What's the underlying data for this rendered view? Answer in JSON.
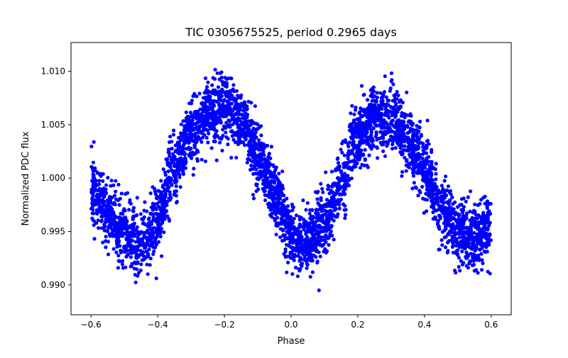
{
  "chart_data": {
    "type": "scatter",
    "title": "TIC 0305675525, period 0.2965 days",
    "xlabel": "Phase",
    "ylabel": "Normalized PDC flux",
    "xlim": [
      -0.66,
      0.66
    ],
    "ylim": [
      0.9872,
      1.0127
    ],
    "xticks": [
      -0.6,
      -0.4,
      -0.2,
      0.0,
      0.2,
      0.4,
      0.6
    ],
    "xtick_labels": [
      "−0.6",
      "−0.4",
      "−0.2",
      "0.0",
      "0.2",
      "0.4",
      "0.6"
    ],
    "yticks": [
      0.99,
      0.995,
      1.0,
      1.005,
      1.01
    ],
    "ytick_labels": [
      "0.990",
      "0.995",
      "1.000",
      "1.005",
      "1.010"
    ],
    "grid": false,
    "marker_color": "#0000ff",
    "series": [
      {
        "name": "PDC flux",
        "model": {
          "description": "phase-folded eclipsing-binary light curve, ~4000 points",
          "phase_range": [
            -0.6,
            0.6
          ],
          "n_points": 4000,
          "noise_sigma": 0.0015,
          "curve_points": [
            [
              -0.6,
              0.999
            ],
            [
              -0.55,
              0.997
            ],
            [
              -0.5,
              0.995
            ],
            [
              -0.45,
              0.9938
            ],
            [
              -0.4,
              0.996
            ],
            [
              -0.35,
              1.001
            ],
            [
              -0.3,
              1.0045
            ],
            [
              -0.25,
              1.006
            ],
            [
              -0.2,
              1.0068
            ],
            [
              -0.15,
              1.0055
            ],
            [
              -0.1,
              1.002
            ],
            [
              -0.05,
              0.9985
            ],
            [
              0.0,
              0.9945
            ],
            [
              0.05,
              0.994
            ],
            [
              0.1,
              0.9955
            ],
            [
              0.15,
              0.9995
            ],
            [
              0.2,
              1.004
            ],
            [
              0.25,
              1.0058
            ],
            [
              0.3,
              1.0058
            ],
            [
              0.35,
              1.0035
            ],
            [
              0.4,
              1.001
            ],
            [
              0.45,
              0.997
            ],
            [
              0.5,
              0.995
            ],
            [
              0.55,
              0.9945
            ],
            [
              0.6,
              0.9958
            ]
          ]
        }
      }
    ]
  }
}
